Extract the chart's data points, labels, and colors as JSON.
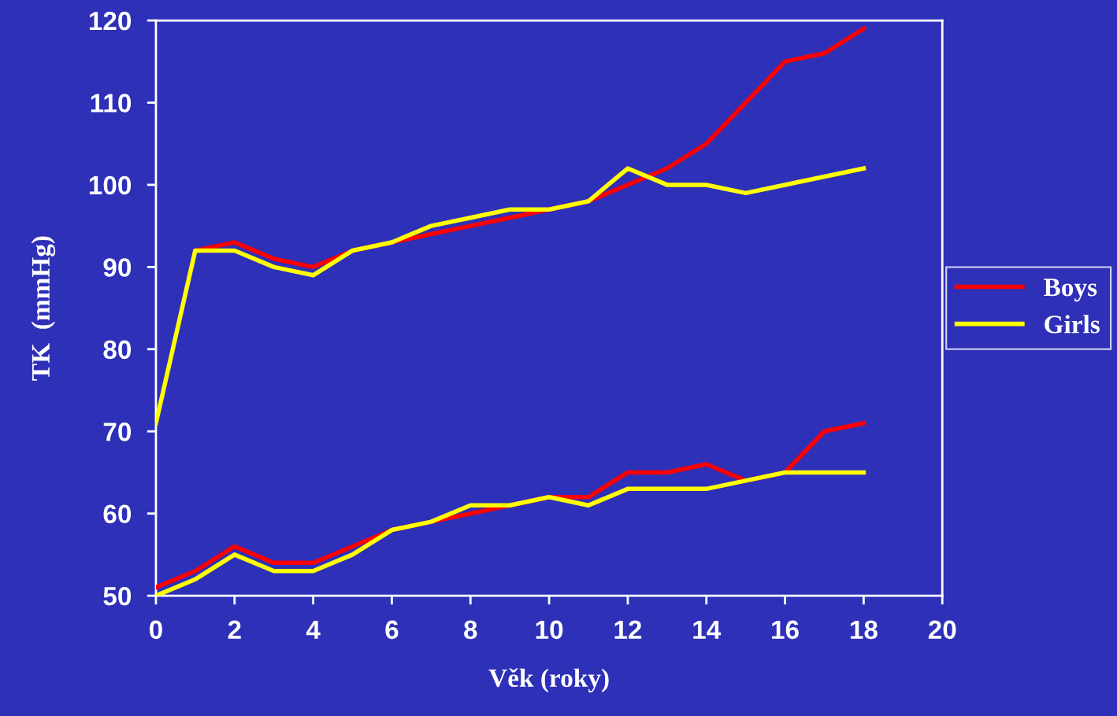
{
  "chart_data": {
    "type": "line",
    "xlabel": "Věk (roky)",
    "ylabel": "TK  (mmHg)",
    "x": [
      0,
      1,
      2,
      3,
      4,
      5,
      6,
      7,
      8,
      9,
      10,
      11,
      12,
      13,
      14,
      15,
      16,
      17,
      18
    ],
    "xlim": [
      0,
      20
    ],
    "xticks": [
      0,
      2,
      4,
      6,
      8,
      10,
      12,
      14,
      16,
      18,
      20
    ],
    "ylim": [
      50,
      120
    ],
    "yticks": [
      50,
      60,
      70,
      80,
      90,
      100,
      110,
      120
    ],
    "grid": false,
    "legend": "right",
    "marker": "none",
    "line_style": "solid",
    "series": [
      {
        "name": "Boys",
        "color": "#ff0000",
        "values": [
          null,
          92,
          93,
          91,
          90,
          92,
          93,
          94,
          95,
          96,
          97,
          98,
          100,
          102,
          105,
          110,
          115,
          116,
          119
        ]
      },
      {
        "name": "Girls",
        "color": "#ffff00",
        "values": [
          71,
          92,
          92,
          90,
          89,
          92,
          93,
          95,
          96,
          97,
          97,
          98,
          102,
          100,
          100,
          99,
          100,
          101,
          102
        ]
      },
      {
        "color": "#ff0000",
        "values": [
          51,
          53,
          56,
          54,
          54,
          56,
          58,
          59,
          60,
          61,
          62,
          62,
          65,
          65,
          66,
          64,
          65,
          70,
          71
        ]
      },
      {
        "color": "#ffff00",
        "values": [
          50,
          52,
          55,
          53,
          53,
          55,
          58,
          59,
          61,
          61,
          62,
          61,
          63,
          63,
          63,
          64,
          65,
          65,
          65
        ]
      }
    ]
  }
}
